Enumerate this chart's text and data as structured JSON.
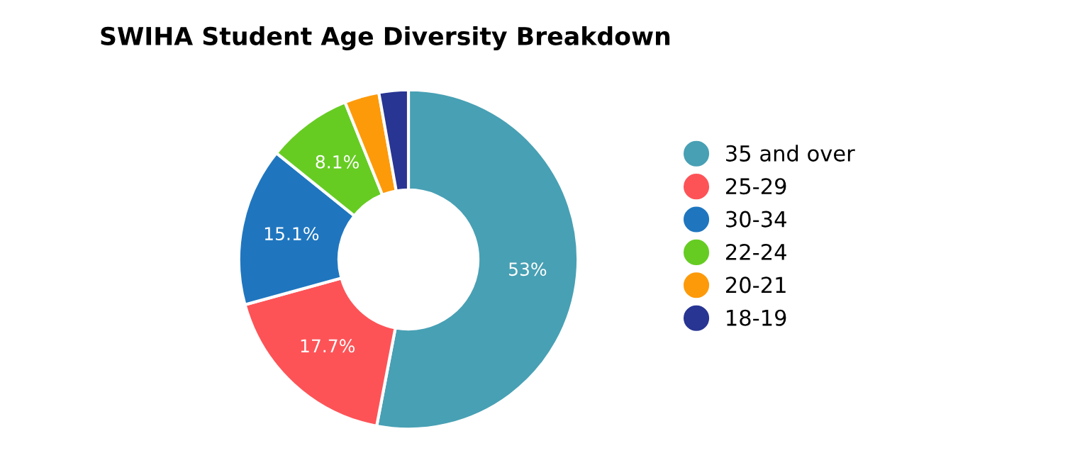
{
  "chart_data": {
    "type": "donut",
    "title": "SWIHA Student Age Diversity Breakdown",
    "categories": [
      "35 and over",
      "25-29",
      "30-34",
      "22-24",
      "20-21",
      "18-19"
    ],
    "values": [
      53,
      17.7,
      15.1,
      8.1,
      3.3,
      2.8
    ],
    "colors": [
      "#48a0b4",
      "#fd5357",
      "#1f76bf",
      "#66cc22",
      "#fd9a0a",
      "#283593"
    ],
    "value_labels": [
      "53%",
      "17.7%",
      "15.1%",
      "8.1%",
      null,
      null
    ],
    "legend": "right"
  }
}
